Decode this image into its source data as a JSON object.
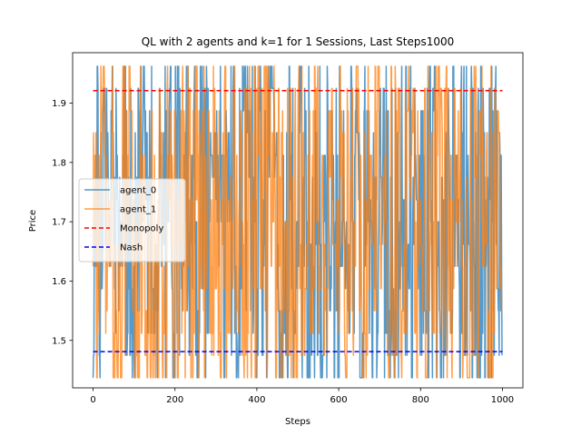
{
  "chart_data": {
    "type": "line",
    "title": "QL with 2 agents and k=1 for 1 Sessions, Last Steps1000",
    "xlabel": "Steps",
    "ylabel": "Price",
    "xlim": [
      -50,
      1050
    ],
    "ylim": [
      1.42,
      1.985
    ],
    "x_ticks": [
      0,
      200,
      400,
      600,
      800,
      1000
    ],
    "y_ticks": [
      1.5,
      1.6,
      1.7,
      1.8,
      1.9
    ],
    "legend_position": "center-left",
    "price_levels": [
      1.437,
      1.475,
      1.512,
      1.55,
      1.587,
      1.625,
      1.662,
      1.7,
      1.737,
      1.775,
      1.812,
      1.85,
      1.887,
      1.925,
      1.962
    ],
    "series": [
      {
        "name": "agent_0",
        "color": "#1f77b4",
        "opacity": 0.75,
        "style": "solid",
        "x_start": 0,
        "x_end": 999,
        "num_points": 1000,
        "range": [
          1.437,
          1.962
        ]
      },
      {
        "name": "agent_1",
        "color": "#ff7f0e",
        "opacity": 0.75,
        "style": "solid",
        "x_start": 0,
        "x_end": 999,
        "num_points": 1000,
        "range": [
          1.437,
          1.962
        ]
      },
      {
        "name": "Monopoly",
        "color": "#ff0000",
        "style": "dashed",
        "y": 1.921
      },
      {
        "name": "Nash",
        "color": "#0000ff",
        "style": "dashed",
        "y": 1.481
      }
    ]
  }
}
